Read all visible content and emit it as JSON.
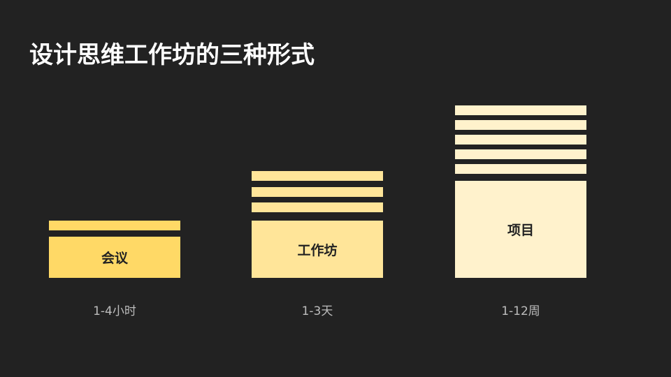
{
  "title": "设计思维工作坊的三种形式",
  "forms": [
    {
      "label": "会议",
      "duration": "1-4小时",
      "color": "#ffd966",
      "stripes": 1
    },
    {
      "label": "工作坊",
      "duration": "1-3天",
      "color": "#ffe599",
      "stripes": 3
    },
    {
      "label": "项目",
      "duration": "1-12周",
      "color": "#fff2cc",
      "stripes": 5
    }
  ]
}
